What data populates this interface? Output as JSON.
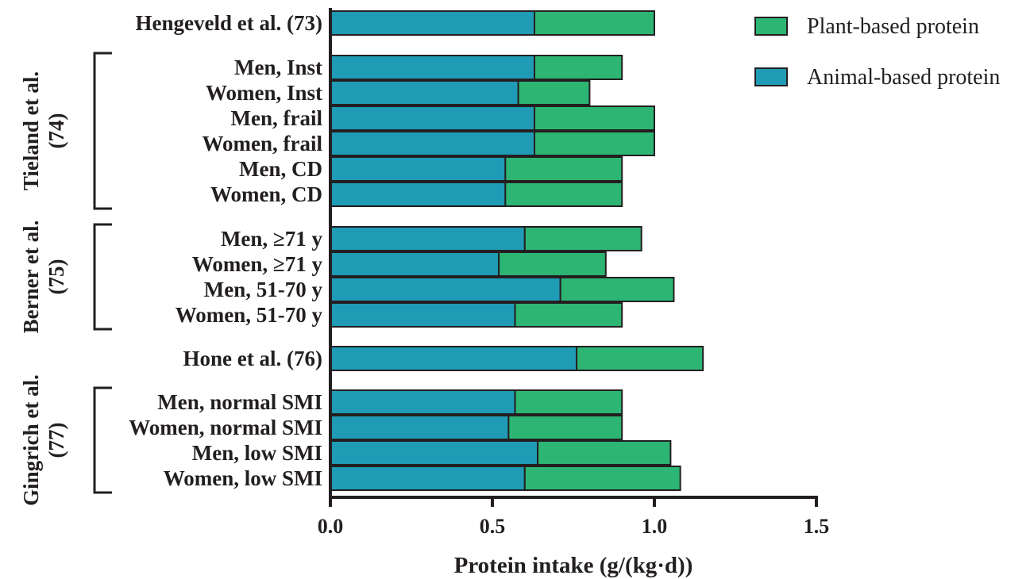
{
  "colors": {
    "animal": "#1f9bb5",
    "plant": "#2db573",
    "stroke": "#231f20",
    "text": "#231f20"
  },
  "legend": [
    {
      "key": "plant",
      "label": "Plant-based protein"
    },
    {
      "key": "animal",
      "label": "Animal-based protein"
    }
  ],
  "chart_data": {
    "type": "bar",
    "orientation": "horizontal",
    "stacked": true,
    "xlabel": "Protein intake (g/(kg·d))",
    "xlim": [
      0,
      1.5
    ],
    "xticks": [
      0.0,
      0.5,
      1.0,
      1.5
    ],
    "xtick_labels": [
      "0.0",
      "0.5",
      "1.0",
      "1.5"
    ],
    "legend_position": "top-right",
    "categories": [
      "Hengeveld et al. (73)",
      "Men, Inst",
      "Women, Inst",
      "Men, frail",
      "Women, frail",
      "Men, CD",
      "Women, CD",
      "Men, ≥71 y",
      "Women, ≥71 y",
      "Men, 51-70 y",
      "Women, 51-70 y",
      "Hone et al. (76)",
      "Men, normal SMI",
      "Women, normal SMI",
      "Men, low SMI",
      "Women, low SMI"
    ],
    "series": [
      {
        "name": "Animal-based protein",
        "values": [
          0.63,
          0.63,
          0.58,
          0.63,
          0.63,
          0.54,
          0.54,
          0.6,
          0.52,
          0.71,
          0.57,
          0.76,
          0.57,
          0.55,
          0.64,
          0.6
        ]
      },
      {
        "name": "Plant-based protein",
        "values": [
          0.37,
          0.27,
          0.22,
          0.37,
          0.37,
          0.36,
          0.36,
          0.36,
          0.33,
          0.35,
          0.33,
          0.39,
          0.33,
          0.35,
          0.41,
          0.48
        ]
      }
    ],
    "groups": [
      {
        "label_lines": [
          "Tieland et al.",
          "(74)"
        ],
        "members": [
          1,
          2,
          3,
          4,
          5,
          6
        ]
      },
      {
        "label_lines": [
          "Berner et al.",
          "(75)"
        ],
        "members": [
          7,
          8,
          9,
          10
        ]
      },
      {
        "label_lines": [
          "Gingrich et al.",
          "(77)"
        ],
        "members": [
          12,
          13,
          14,
          15
        ]
      }
    ]
  }
}
